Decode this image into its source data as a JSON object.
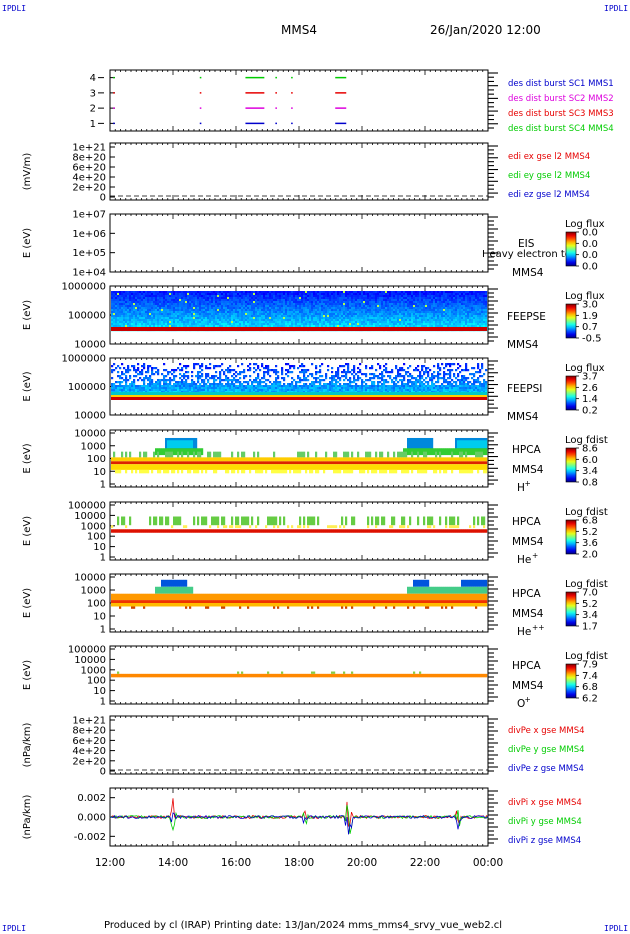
{
  "corners": {
    "tl": "IPDLI",
    "tr": "IPDLI",
    "bl": "IPDLI",
    "br": "IPDLI"
  },
  "header": {
    "spacecraft": "MMS4",
    "date": "26/Jan/2020 12:00"
  },
  "footer": {
    "text": "Produced by cl (IRAP)   Printing date: 13/Jan/2024   mms_mms4_srvy_vue_web2.cl"
  },
  "x_axis": {
    "ticks": [
      "12:00",
      "14:00",
      "16:00",
      "18:00",
      "20:00",
      "22:00",
      "00:00"
    ]
  },
  "colors": {
    "red": "#e60000",
    "green": "#00cc00",
    "blue": "#0000cc",
    "magenta": "#dd00dd"
  },
  "chart_data": [
    {
      "type": "scatter",
      "panel": "burst",
      "yticks": [
        "1",
        "2",
        "3",
        "4"
      ],
      "ylim": [
        0.5,
        4.5
      ],
      "series": [
        {
          "name": "des dist burst SC1 MMS1",
          "color": "#0000cc",
          "y": 1
        },
        {
          "name": "des dist burst SC2 MMS2",
          "color": "#dd00dd",
          "y": 2
        },
        {
          "name": "des dist burst SC3 MMS3",
          "color": "#e60000",
          "y": 3
        },
        {
          "name": "des dist burst SC4 MMS4",
          "color": "#00cc00",
          "y": 4
        }
      ],
      "bursts_hours": [
        [
          0.1,
          0.15
        ],
        [
          2.85,
          2.9
        ],
        [
          4.3,
          4.9
        ],
        [
          5.25,
          5.3
        ],
        [
          5.75,
          5.8
        ],
        [
          7.15,
          7.5
        ]
      ]
    },
    {
      "type": "line",
      "panel": "edi",
      "ylabel": "(mV/m)",
      "yticks": [
        "1e+21",
        "8e+20",
        "6e+20",
        "4e+20",
        "2e+20",
        "0"
      ],
      "series": [
        {
          "name": "edi ex gse l2 MMS4",
          "color": "#e60000"
        },
        {
          "name": "edi ey gse l2 MMS4",
          "color": "#00cc00"
        },
        {
          "name": "edi ez gse l2 MMS4",
          "color": "#0000cc"
        }
      ]
    },
    {
      "type": "heatmap",
      "panel": "eis",
      "ylabel": "E (eV)",
      "yticks": [
        "1e+07",
        "1e+06",
        "1e+05",
        "1e+04"
      ],
      "instrument": "EIS",
      "sc": "MMS4",
      "extra": "Heavy electron to",
      "cb_title": "Log flux",
      "cb_ticks": [
        "0.0",
        "0.0",
        "0.0",
        "0.0"
      ]
    },
    {
      "type": "heatmap",
      "panel": "feeps_e",
      "ylabel": "E (eV)",
      "yticks": [
        "1000000",
        "100000",
        "10000"
      ],
      "instrument": "FEEPSE",
      "sc": "MMS4",
      "cb_title": "Log flux",
      "cb_ticks": [
        "3.0",
        "1.9",
        "0.7",
        "-0.5"
      ]
    },
    {
      "type": "heatmap",
      "panel": "feeps_i",
      "ylabel": "E (eV)",
      "yticks": [
        "1000000",
        "100000",
        "10000"
      ],
      "instrument": "FEEPSI",
      "sc": "MMS4",
      "cb_title": "Log flux",
      "cb_ticks": [
        "3.7",
        "2.6",
        "1.4",
        "0.2"
      ]
    },
    {
      "type": "heatmap",
      "panel": "hpca_h",
      "ylabel": "E (eV)",
      "yticks": [
        "10000",
        "1000",
        "100",
        "10",
        "1"
      ],
      "instrument": "HPCA",
      "sc": "MMS4",
      "species": "H",
      "sup": "+",
      "cb_title": "Log fdist",
      "cb_ticks": [
        "8.6",
        "6.0",
        "3.4",
        "0.8"
      ]
    },
    {
      "type": "heatmap",
      "panel": "hpca_he",
      "ylabel": "E (eV)",
      "yticks": [
        "100000",
        "10000",
        "1000",
        "100",
        "10",
        "1"
      ],
      "instrument": "HPCA",
      "sc": "MMS4",
      "species": "He",
      "sup": "+",
      "cb_title": "Log fdist",
      "cb_ticks": [
        "6.8",
        "5.2",
        "3.6",
        "2.0"
      ]
    },
    {
      "type": "heatmap",
      "panel": "hpca_hepp",
      "ylabel": "E (eV)",
      "yticks": [
        "10000",
        "1000",
        "100",
        "10",
        "1"
      ],
      "instrument": "HPCA",
      "sc": "MMS4",
      "species": "He",
      "sup": "++",
      "cb_title": "Log fdist",
      "cb_ticks": [
        "7.0",
        "5.2",
        "3.4",
        "1.7"
      ]
    },
    {
      "type": "heatmap",
      "panel": "hpca_o",
      "ylabel": "E (eV)",
      "yticks": [
        "100000",
        "10000",
        "1000",
        "100",
        "10",
        "1"
      ],
      "instrument": "HPCA",
      "sc": "MMS4",
      "species": "O",
      "sup": "+",
      "cb_title": "Log fdist",
      "cb_ticks": [
        "7.9",
        "7.4",
        "6.8",
        "6.2"
      ]
    },
    {
      "type": "line",
      "panel": "divpe",
      "ylabel": "(nPa/km)",
      "yticks": [
        "1e+21",
        "8e+20",
        "6e+20",
        "4e+20",
        "2e+20",
        "0"
      ],
      "series": [
        {
          "name": "divPe x gse MMS4",
          "color": "#e60000"
        },
        {
          "name": "divPe y gse MMS4",
          "color": "#00cc00"
        },
        {
          "name": "divPe z gse MMS4",
          "color": "#0000cc"
        }
      ]
    },
    {
      "type": "line",
      "panel": "divpi",
      "ylabel": "(nPa/km)",
      "yticks": [
        "0.002",
        "0.000",
        "-0.002"
      ],
      "ylim": [
        -0.003,
        0.003
      ],
      "series": [
        {
          "name": "divPi x gse MMS4",
          "color": "#e60000"
        },
        {
          "name": "divPi y gse MMS4",
          "color": "#00cc00"
        },
        {
          "name": "divPi z gse MMS4",
          "color": "#0000cc"
        }
      ],
      "spikes_hours": [
        [
          2.0,
          0.0025
        ],
        [
          6.2,
          0.0012
        ],
        [
          7.55,
          0.0024
        ],
        [
          7.6,
          -0.0028
        ],
        [
          11.05,
          0.0018
        ]
      ]
    }
  ]
}
